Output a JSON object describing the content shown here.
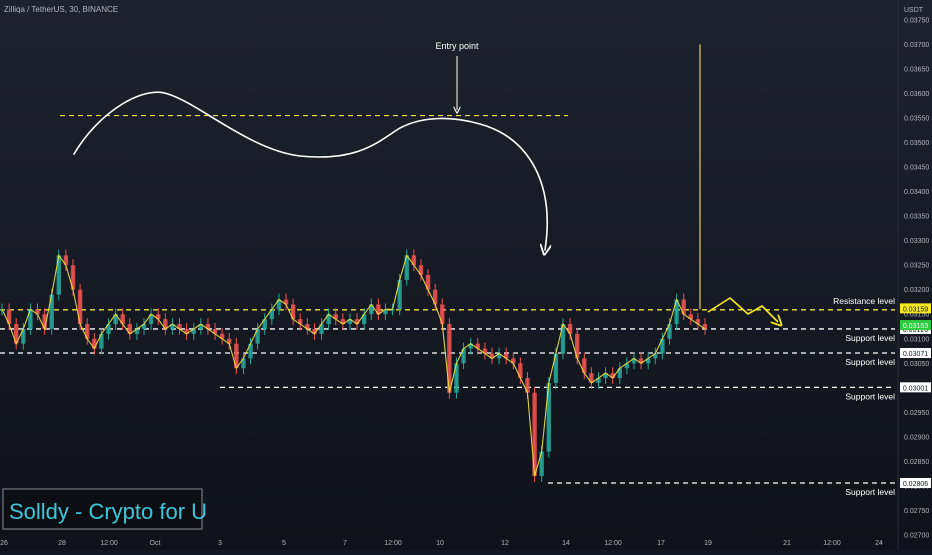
{
  "header": {
    "symbol_info": "Zilliqa / TetherUS, 30, BINANCE",
    "currency": "USDT"
  },
  "colors": {
    "background_top": "#1e222d",
    "background_bottom": "#0f121a",
    "candle_up": "#26a69a",
    "candle_down": "#ef5350",
    "price_line_yellow": "#f0e442",
    "annotation_white": "#ffffff",
    "resistance_tag": "#f7e81f",
    "current_tag": "#2ecc40",
    "watermark_text": "#3ec7d8"
  },
  "watermark": "Solldy - Crypto for U",
  "annotation_entry": "Entry point",
  "chart_data": {
    "type": "line",
    "ylim": [
      0.027,
      0.0376
    ],
    "y_ticks": [
      "0.03750",
      "0.03700",
      "0.03650",
      "0.03600",
      "0.03550",
      "0.03500",
      "0.03450",
      "0.03400",
      "0.03350",
      "0.03300",
      "0.03250",
      "0.03200",
      "0.03150",
      "0.03100",
      "0.03050",
      "0.03000",
      "0.02950",
      "0.02900",
      "0.02850",
      "0.02800",
      "0.02750",
      "0.02700"
    ],
    "x_ticks": [
      "26",
      "28",
      "12:00",
      "Oct",
      "3",
      "5",
      "7",
      "12:00",
      "10",
      "12",
      "14",
      "12:00",
      "17",
      "19",
      "21",
      "12:00",
      "24"
    ],
    "series": [
      {
        "values": [
          0.0316,
          0.0313,
          0.0309,
          0.0312,
          0.0316,
          0.0315,
          0.0312,
          0.0319,
          0.0327,
          0.0325,
          0.032,
          0.0313,
          0.031,
          0.0308,
          0.0311,
          0.0313,
          0.0315,
          0.0313,
          0.0311,
          0.0312,
          0.0313,
          0.0315,
          0.0314,
          0.0312,
          0.0313,
          0.0312,
          0.0311,
          0.0312,
          0.0313,
          0.0312,
          0.0311,
          0.031,
          0.0309,
          0.0304,
          0.0306,
          0.0309,
          0.0312,
          0.0314,
          0.0316,
          0.0318,
          0.0317,
          0.0314,
          0.0313,
          0.0312,
          0.0311,
          0.0313,
          0.0315,
          0.0314,
          0.0313,
          0.0314,
          0.0313,
          0.0315,
          0.0317,
          0.0315,
          0.0316,
          0.0316,
          0.0322,
          0.0327,
          0.0325,
          0.0323,
          0.032,
          0.0317,
          0.0313,
          0.0299,
          0.0305,
          0.0308,
          0.0309,
          0.0308,
          0.0307,
          0.0306,
          0.0307,
          0.0306,
          0.0305,
          0.0302,
          0.0299,
          0.0282,
          0.0287,
          0.0301,
          0.0307,
          0.0313,
          0.0311,
          0.0306,
          0.0303,
          0.0301,
          0.0302,
          0.0303,
          0.0302,
          0.0304,
          0.0305,
          0.0306,
          0.0305,
          0.0306,
          0.0307,
          0.031,
          0.0313,
          0.0318,
          0.0315,
          0.0314,
          0.0313,
          0.0312
        ],
        "color": "#f0e442"
      }
    ],
    "levels": [
      {
        "name": "Resistance level",
        "value": 0.03159,
        "tag": "0.03159",
        "style": "yellow-dashed"
      },
      {
        "name": "Support level",
        "value": 0.0312,
        "tag": "0.03120",
        "style": "white-dashed"
      },
      {
        "name": "Support level",
        "value": 0.03071,
        "tag": "0.03071",
        "style": "white-dashed"
      },
      {
        "name": "Support level",
        "value": 0.03001,
        "tag": "0.03001",
        "style": "white-dashed"
      },
      {
        "name": "Support level",
        "value": 0.02806,
        "tag": "0.02806",
        "style": "white-dashed"
      }
    ],
    "entry_level": 0.03555,
    "current_price_tag": "0.03153",
    "spike_high": 0.037,
    "grid": false
  }
}
